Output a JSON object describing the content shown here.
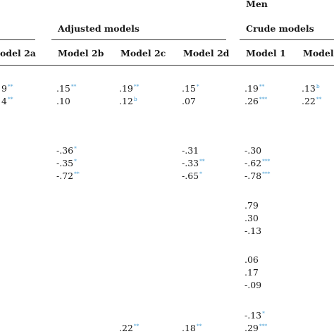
{
  "header": {
    "group_men": "Men",
    "adjusted_models": "Adjusted models",
    "crude_models": "Crude models",
    "columns": [
      "odel 2a",
      "Model 2b",
      "Model 2c",
      "Model 2d",
      "Model 1",
      "Model"
    ]
  },
  "sig_color": "#4a9fd4",
  "rows": {
    "r1": [
      {
        "v": "9",
        "s": "**"
      },
      {
        "v": ".15",
        "s": "**"
      },
      {
        "v": ".19",
        "s": "**"
      },
      {
        "v": ".15",
        "s": "*"
      },
      {
        "v": ".19",
        "s": "**"
      },
      {
        "v": ".13",
        "s": "b"
      }
    ],
    "r2": [
      {
        "v": "4",
        "s": "**"
      },
      {
        "v": ".10",
        "s": ""
      },
      {
        "v": ".12",
        "s": "b"
      },
      {
        "v": ".07",
        "s": ""
      },
      {
        "v": ".26",
        "s": "***"
      },
      {
        "v": ".22",
        "s": "**"
      }
    ],
    "r3": [
      {
        "v": "-.36",
        "s": "*"
      },
      {
        "v": "-.31",
        "s": ""
      },
      {
        "v": "-.30",
        "s": ""
      }
    ],
    "r4": [
      {
        "v": "-.35",
        "s": "*"
      },
      {
        "v": "-.33",
        "s": "**"
      },
      {
        "v": "-.62",
        "s": "***"
      }
    ],
    "r5": [
      {
        "v": "-.72",
        "s": "**"
      },
      {
        "v": "-.65",
        "s": "*"
      },
      {
        "v": "-.78",
        "s": "***"
      }
    ],
    "r6": {
      "v": ".79",
      "s": ""
    },
    "r7": {
      "v": ".30",
      "s": ""
    },
    "r8": {
      "v": "-.13",
      "s": ""
    },
    "r9": {
      "v": ".06",
      "s": ""
    },
    "r10": {
      "v": ".17",
      "s": ""
    },
    "r11": {
      "v": "-.09",
      "s": ""
    },
    "r12": {
      "v": "-.13",
      "s": "*"
    },
    "r13": [
      {
        "v": ".22",
        "s": "**"
      },
      {
        "v": ".18",
        "s": "**"
      },
      {
        "v": ".29",
        "s": "***"
      }
    ]
  }
}
